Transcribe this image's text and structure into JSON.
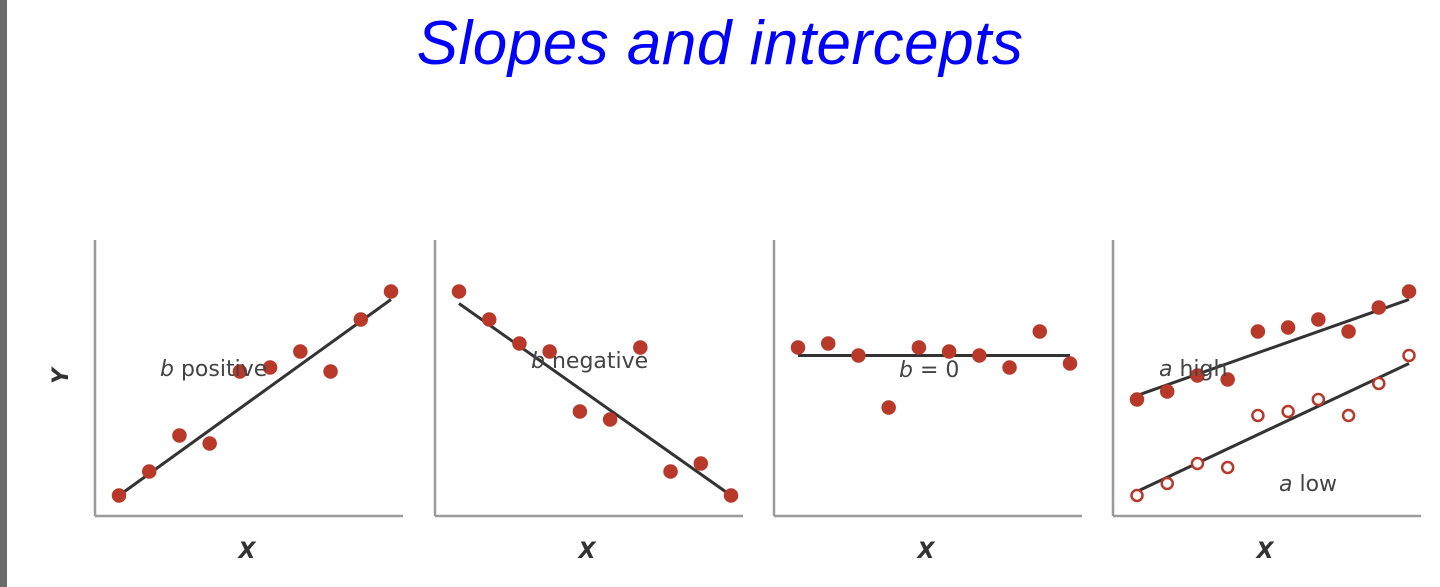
{
  "title": "Slopes and intercepts",
  "colors": {
    "title": "#0000ff",
    "points": "#b8382a",
    "line": "#333333",
    "axis": "#9a9a9a"
  },
  "chart_data": [
    {
      "type": "scatter",
      "xlabel": "X",
      "ylabel": "Y",
      "annotation": {
        "var": "b",
        "text": "positive"
      },
      "series": [
        {
          "marker": "filled",
          "points": [
            [
              0.4,
              0.5
            ],
            [
              1.4,
              1.1
            ],
            [
              2.4,
              2.0
            ],
            [
              3.4,
              1.8
            ],
            [
              4.4,
              3.6
            ],
            [
              5.4,
              3.7
            ],
            [
              6.4,
              4.1
            ],
            [
              7.4,
              3.6
            ],
            [
              8.4,
              4.9
            ],
            [
              9.4,
              5.6
            ]
          ],
          "fit": [
            [
              0.4,
              0.5
            ],
            [
              9.4,
              5.4
            ]
          ]
        }
      ]
    },
    {
      "type": "scatter",
      "xlabel": "X",
      "ylabel": "",
      "annotation": {
        "var": "b",
        "text": "negative"
      },
      "series": [
        {
          "marker": "filled",
          "points": [
            [
              0.4,
              5.6
            ],
            [
              1.4,
              4.9
            ],
            [
              2.4,
              4.3
            ],
            [
              3.4,
              4.1
            ],
            [
              4.4,
              2.6
            ],
            [
              5.4,
              2.4
            ],
            [
              6.4,
              4.2
            ],
            [
              7.4,
              1.1
            ],
            [
              8.4,
              1.3
            ],
            [
              9.4,
              0.5
            ]
          ],
          "fit": [
            [
              0.4,
              5.3
            ],
            [
              9.4,
              0.5
            ]
          ]
        }
      ]
    },
    {
      "type": "scatter",
      "xlabel": "X",
      "ylabel": "",
      "annotation": {
        "var": "b",
        "text": " = 0"
      },
      "series": [
        {
          "marker": "filled",
          "points": [
            [
              0.4,
              4.2
            ],
            [
              1.4,
              4.3
            ],
            [
              2.4,
              4.0
            ],
            [
              3.4,
              2.7
            ],
            [
              4.4,
              4.2
            ],
            [
              5.4,
              4.1
            ],
            [
              6.4,
              4.0
            ],
            [
              7.4,
              3.7
            ],
            [
              8.4,
              4.6
            ],
            [
              9.4,
              3.8
            ]
          ],
          "fit": [
            [
              0.4,
              4.0
            ],
            [
              9.4,
              4.0
            ]
          ]
        }
      ]
    },
    {
      "type": "scatter",
      "xlabel": "X",
      "ylabel": "",
      "annotations": [
        {
          "var": "a",
          "text": "high"
        },
        {
          "var": "a",
          "text": "low"
        }
      ],
      "series": [
        {
          "marker": "filled",
          "points": [
            [
              0.4,
              2.9
            ],
            [
              1.4,
              3.1
            ],
            [
              2.4,
              3.5
            ],
            [
              3.4,
              3.4
            ],
            [
              4.4,
              4.6
            ],
            [
              5.4,
              4.7
            ],
            [
              6.4,
              4.9
            ],
            [
              7.4,
              4.6
            ],
            [
              8.4,
              5.2
            ],
            [
              9.4,
              5.6
            ]
          ],
          "fit": [
            [
              0.4,
              3.0
            ],
            [
              9.4,
              5.4
            ]
          ]
        },
        {
          "marker": "open",
          "points": [
            [
              0.4,
              0.5
            ],
            [
              1.4,
              0.8
            ],
            [
              2.4,
              1.3
            ],
            [
              3.4,
              1.2
            ],
            [
              4.4,
              2.5
            ],
            [
              5.4,
              2.6
            ],
            [
              6.4,
              2.9
            ],
            [
              7.4,
              2.5
            ],
            [
              8.4,
              3.3
            ],
            [
              9.4,
              4.0
            ]
          ],
          "fit": [
            [
              0.4,
              0.6
            ],
            [
              9.4,
              3.8
            ]
          ]
        }
      ]
    }
  ]
}
